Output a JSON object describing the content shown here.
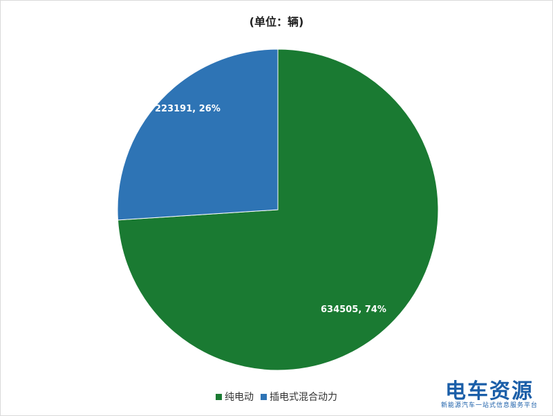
{
  "chart_data": {
    "type": "pie",
    "title": "(单位：辆)",
    "slices": [
      {
        "name": "纯电动",
        "value": 634505,
        "percent": "74%",
        "label": "634505, 74%",
        "color": "#1a7a32"
      },
      {
        "name": "插电式混合动力",
        "value": 223191,
        "percent": "26%",
        "label": "223191, 26%",
        "color": "#2e74b5"
      }
    ],
    "legend_position": "bottom"
  },
  "watermark": {
    "name": "电车资源",
    "tagline": "新能源汽车一站式信息服务平台"
  }
}
